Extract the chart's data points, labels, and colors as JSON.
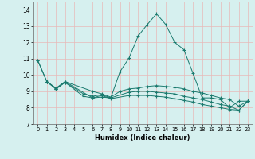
{
  "xlabel": "Humidex (Indice chaleur)",
  "xlim": [
    -0.5,
    23.5
  ],
  "ylim": [
    7,
    14.5
  ],
  "yticks": [
    7,
    8,
    9,
    10,
    11,
    12,
    13,
    14
  ],
  "xticks": [
    0,
    1,
    2,
    3,
    4,
    5,
    6,
    7,
    8,
    9,
    10,
    11,
    12,
    13,
    14,
    15,
    16,
    17,
    18,
    19,
    20,
    21,
    22,
    23
  ],
  "bg_color": "#d6f0ef",
  "grid_color": "#e8b8b8",
  "line_color": "#1a7a6e",
  "line1": {
    "x": [
      0,
      1,
      2,
      3,
      6,
      7,
      8,
      9,
      10,
      11,
      12,
      13,
      14,
      15,
      16,
      17,
      18,
      19,
      20,
      21,
      22,
      23
    ],
    "y": [
      10.9,
      9.6,
      9.2,
      9.6,
      8.6,
      8.65,
      8.6,
      10.2,
      11.05,
      12.4,
      13.1,
      13.75,
      13.1,
      12.0,
      11.55,
      10.1,
      8.6,
      8.6,
      8.5,
      8.0,
      8.4,
      8.4
    ]
  },
  "line2": {
    "x": [
      1,
      2,
      3,
      6,
      7,
      8,
      9,
      10,
      11,
      12,
      13,
      14,
      15,
      16,
      17,
      18,
      19,
      20,
      21,
      22,
      23
    ],
    "y": [
      9.6,
      9.15,
      9.6,
      9.0,
      8.85,
      8.65,
      9.0,
      9.15,
      9.2,
      9.3,
      9.35,
      9.3,
      9.25,
      9.15,
      9.0,
      8.9,
      8.75,
      8.6,
      8.5,
      8.1,
      8.4
    ]
  },
  "line3": {
    "x": [
      1,
      2,
      3,
      5,
      6,
      7,
      8,
      10,
      11,
      12,
      13,
      14,
      15,
      16,
      17,
      18,
      19,
      20,
      21,
      22,
      23
    ],
    "y": [
      9.6,
      9.15,
      9.55,
      8.85,
      8.7,
      8.8,
      8.6,
      8.95,
      9.0,
      9.0,
      8.95,
      8.9,
      8.85,
      8.7,
      8.6,
      8.5,
      8.35,
      8.2,
      8.1,
      7.85,
      8.4
    ]
  },
  "line4": {
    "x": [
      0,
      1,
      2,
      3,
      5,
      6,
      7,
      8,
      10,
      11,
      12,
      13,
      14,
      15,
      16,
      17,
      18,
      19,
      20,
      21,
      22,
      23
    ],
    "y": [
      10.9,
      9.6,
      9.15,
      9.55,
      8.7,
      8.6,
      8.75,
      8.55,
      8.75,
      8.75,
      8.75,
      8.7,
      8.65,
      8.55,
      8.45,
      8.35,
      8.2,
      8.1,
      8.0,
      7.9,
      7.85,
      8.4
    ]
  }
}
